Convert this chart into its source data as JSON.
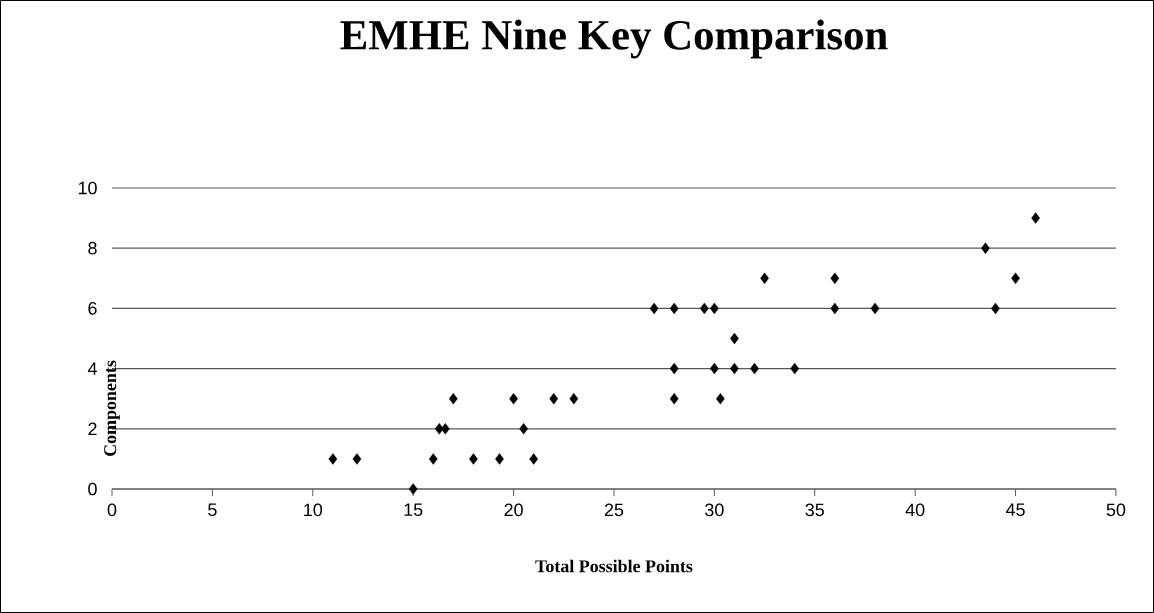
{
  "chart_data": {
    "type": "scatter",
    "title": "EMHE Nine Key Comparison",
    "xlabel": "Total Possible Points",
    "ylabel": "Components",
    "xlim": [
      0,
      50
    ],
    "xticks": [
      0,
      5,
      10,
      15,
      20,
      25,
      30,
      35,
      40,
      45,
      50
    ],
    "ylim": [
      0,
      10
    ],
    "yticks": [
      0,
      2,
      4,
      6,
      8,
      10
    ],
    "grid": "y",
    "marker": "diamond",
    "series": [
      {
        "color": "#000000",
        "x": [
          11,
          12.2,
          15,
          16,
          16.3,
          16.6,
          17,
          18,
          19.3,
          20,
          20.5,
          21,
          22,
          23,
          27,
          28,
          28,
          28,
          29.5,
          30,
          30,
          30.3,
          31,
          31,
          32,
          32.5,
          34,
          36,
          36,
          38,
          43.5,
          44,
          45,
          46
        ],
        "values": [
          1,
          1,
          0,
          1,
          2,
          2,
          3,
          1,
          1,
          3,
          2,
          1,
          3,
          3,
          6,
          6,
          4,
          3,
          6,
          6,
          4,
          3,
          5,
          4,
          4,
          7,
          4,
          7,
          6,
          6,
          8,
          6,
          7,
          9
        ]
      }
    ]
  }
}
